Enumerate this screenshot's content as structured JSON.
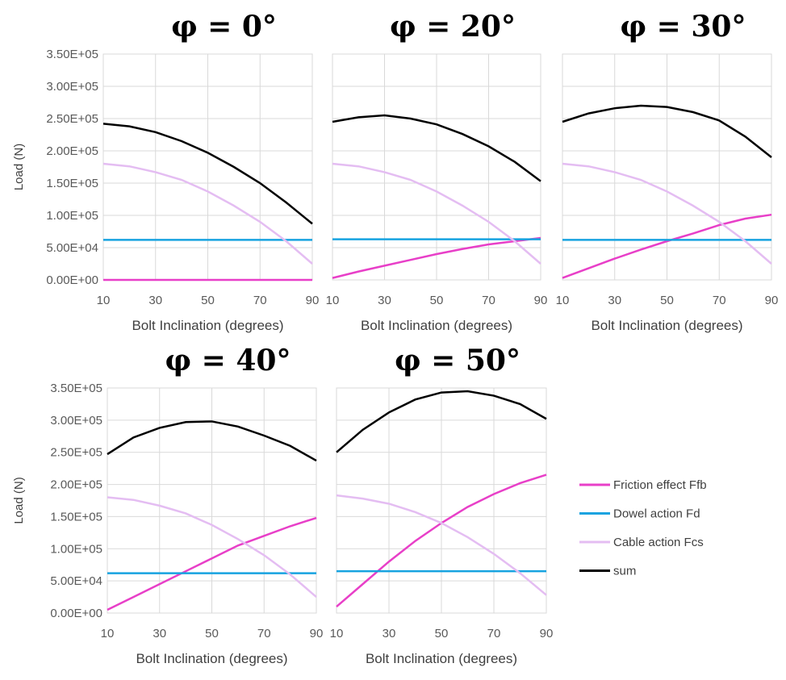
{
  "chart_data": [
    {
      "type": "line",
      "title": "φ = 0°",
      "ylabel": "Load (N)",
      "xlabel": "Bolt Inclination (degrees)",
      "x": [
        10,
        20,
        30,
        40,
        50,
        60,
        70,
        80,
        90
      ],
      "xlim": [
        10,
        90
      ],
      "xticks": [
        10,
        30,
        50,
        70,
        90
      ],
      "ylim": [
        0,
        350000
      ],
      "grid": true,
      "yticks": [
        {
          "value": 0,
          "label": "0.00E+00"
        },
        {
          "value": 50000,
          "label": "5.00E+04"
        },
        {
          "value": 100000,
          "label": "1.00E+05"
        },
        {
          "value": 150000,
          "label": "1.50E+05"
        },
        {
          "value": 200000,
          "label": "2.00E+05"
        },
        {
          "value": 250000,
          "label": "2.50E+05"
        },
        {
          "value": 300000,
          "label": "3.00E+05"
        },
        {
          "value": 350000,
          "label": "3.50E+05"
        }
      ],
      "series": [
        {
          "name": "Friction effect Ffb",
          "color": "#e83fc8",
          "values": [
            0,
            0,
            0,
            0,
            0,
            0,
            0,
            0,
            0
          ]
        },
        {
          "name": "Dowel action Fd",
          "color": "#17a3e0",
          "values": [
            62000,
            62000,
            62000,
            62000,
            62000,
            62000,
            62000,
            62000,
            62000
          ]
        },
        {
          "name": "Cable action Fcs",
          "color": "#e4bdf2",
          "values": [
            180000,
            176000,
            167000,
            155000,
            137000,
            115000,
            90000,
            60000,
            25000
          ]
        },
        {
          "name": "sum",
          "color": "#000000",
          "values": [
            242000,
            238000,
            229000,
            215000,
            197000,
            175000,
            150000,
            120000,
            87000
          ]
        }
      ]
    },
    {
      "type": "line",
      "title": "φ = 20°",
      "xlabel": "Bolt Inclination (degrees)",
      "x": [
        10,
        20,
        30,
        40,
        50,
        60,
        70,
        80,
        90
      ],
      "xlim": [
        10,
        90
      ],
      "xticks": [
        10,
        30,
        50,
        70,
        90
      ],
      "ylim": [
        0,
        350000
      ],
      "grid": true,
      "yticks": [
        0,
        50000,
        100000,
        150000,
        200000,
        250000,
        300000,
        350000
      ],
      "series": [
        {
          "name": "Friction effect Ffb",
          "color": "#e83fc8",
          "values": [
            3000,
            13000,
            22000,
            31000,
            40000,
            48000,
            55000,
            60000,
            65000
          ]
        },
        {
          "name": "Dowel action Fd",
          "color": "#17a3e0",
          "values": [
            63000,
            63000,
            63000,
            63000,
            63000,
            63000,
            63000,
            63000,
            63000
          ]
        },
        {
          "name": "Cable action Fcs",
          "color": "#e4bdf2",
          "values": [
            180000,
            176000,
            167000,
            155000,
            137000,
            115000,
            90000,
            60000,
            25000
          ]
        },
        {
          "name": "sum",
          "color": "#000000",
          "values": [
            245000,
            252000,
            255000,
            250000,
            241000,
            226000,
            207000,
            183000,
            153000
          ]
        }
      ]
    },
    {
      "type": "line",
      "title": "φ = 30°",
      "xlabel": "Bolt Inclination (degrees)",
      "x": [
        10,
        20,
        30,
        40,
        50,
        60,
        70,
        80,
        90
      ],
      "xlim": [
        10,
        90
      ],
      "xticks": [
        10,
        30,
        50,
        70,
        90
      ],
      "ylim": [
        0,
        350000
      ],
      "grid": true,
      "yticks": [
        0,
        50000,
        100000,
        150000,
        200000,
        250000,
        300000,
        350000
      ],
      "series": [
        {
          "name": "Friction effect Ffb",
          "color": "#e83fc8",
          "values": [
            3000,
            18000,
            33000,
            47000,
            60000,
            72000,
            85000,
            95000,
            101000
          ]
        },
        {
          "name": "Dowel action Fd",
          "color": "#17a3e0",
          "values": [
            62000,
            62000,
            62000,
            62000,
            62000,
            62000,
            62000,
            62000,
            62000
          ]
        },
        {
          "name": "Cable action Fcs",
          "color": "#e4bdf2",
          "values": [
            180000,
            176000,
            167000,
            155000,
            137000,
            115000,
            90000,
            60000,
            25000
          ]
        },
        {
          "name": "sum",
          "color": "#000000",
          "values": [
            245000,
            258000,
            266000,
            270000,
            268000,
            260000,
            247000,
            222000,
            190000
          ]
        }
      ]
    },
    {
      "type": "line",
      "title": "φ = 40°",
      "ylabel": "Load (N)",
      "xlabel": "Bolt Inclination (degrees)",
      "x": [
        10,
        20,
        30,
        40,
        50,
        60,
        70,
        80,
        90
      ],
      "xlim": [
        10,
        90
      ],
      "xticks": [
        10,
        30,
        50,
        70,
        90
      ],
      "ylim": [
        0,
        350000
      ],
      "grid": true,
      "yticks": [
        {
          "value": 0,
          "label": "0.00E+00"
        },
        {
          "value": 50000,
          "label": "5.00E+04"
        },
        {
          "value": 100000,
          "label": "1.00E+05"
        },
        {
          "value": 150000,
          "label": "1.50E+05"
        },
        {
          "value": 200000,
          "label": "2.00E+05"
        },
        {
          "value": 250000,
          "label": "2.50E+05"
        },
        {
          "value": 300000,
          "label": "3.00E+05"
        },
        {
          "value": 350000,
          "label": "3.50E+05"
        }
      ],
      "series": [
        {
          "name": "Friction effect Ffb",
          "color": "#e83fc8",
          "values": [
            5000,
            25000,
            45000,
            65000,
            85000,
            105000,
            120000,
            135000,
            148000
          ]
        },
        {
          "name": "Dowel action Fd",
          "color": "#17a3e0",
          "values": [
            62000,
            62000,
            62000,
            62000,
            62000,
            62000,
            62000,
            62000,
            62000
          ]
        },
        {
          "name": "Cable action Fcs",
          "color": "#e4bdf2",
          "values": [
            180000,
            176000,
            167000,
            155000,
            137000,
            115000,
            90000,
            60000,
            25000
          ]
        },
        {
          "name": "sum",
          "color": "#000000",
          "values": [
            247000,
            273000,
            288000,
            297000,
            298000,
            290000,
            276000,
            260000,
            237000
          ]
        }
      ]
    },
    {
      "type": "line",
      "title": "φ = 50°",
      "xlabel": "Bolt Inclination (degrees)",
      "x": [
        10,
        20,
        30,
        40,
        50,
        60,
        70,
        80,
        90
      ],
      "xlim": [
        10,
        90
      ],
      "xticks": [
        10,
        30,
        50,
        70,
        90
      ],
      "ylim": [
        0,
        350000
      ],
      "grid": true,
      "yticks": [
        0,
        50000,
        100000,
        150000,
        200000,
        250000,
        300000,
        350000
      ],
      "series": [
        {
          "name": "Friction effect Ffb",
          "color": "#e83fc8",
          "values": [
            10000,
            45000,
            80000,
            112000,
            140000,
            165000,
            185000,
            202000,
            215000
          ]
        },
        {
          "name": "Dowel action Fd",
          "color": "#17a3e0",
          "values": [
            65000,
            65000,
            65000,
            65000,
            65000,
            65000,
            65000,
            65000,
            65000
          ]
        },
        {
          "name": "Cable action Fcs",
          "color": "#e4bdf2",
          "values": [
            183000,
            178000,
            170000,
            157000,
            140000,
            118000,
            92000,
            62000,
            28000
          ]
        },
        {
          "name": "sum",
          "color": "#000000",
          "values": [
            250000,
            285000,
            312000,
            332000,
            343000,
            345000,
            338000,
            325000,
            302000
          ]
        }
      ]
    }
  ]
}
